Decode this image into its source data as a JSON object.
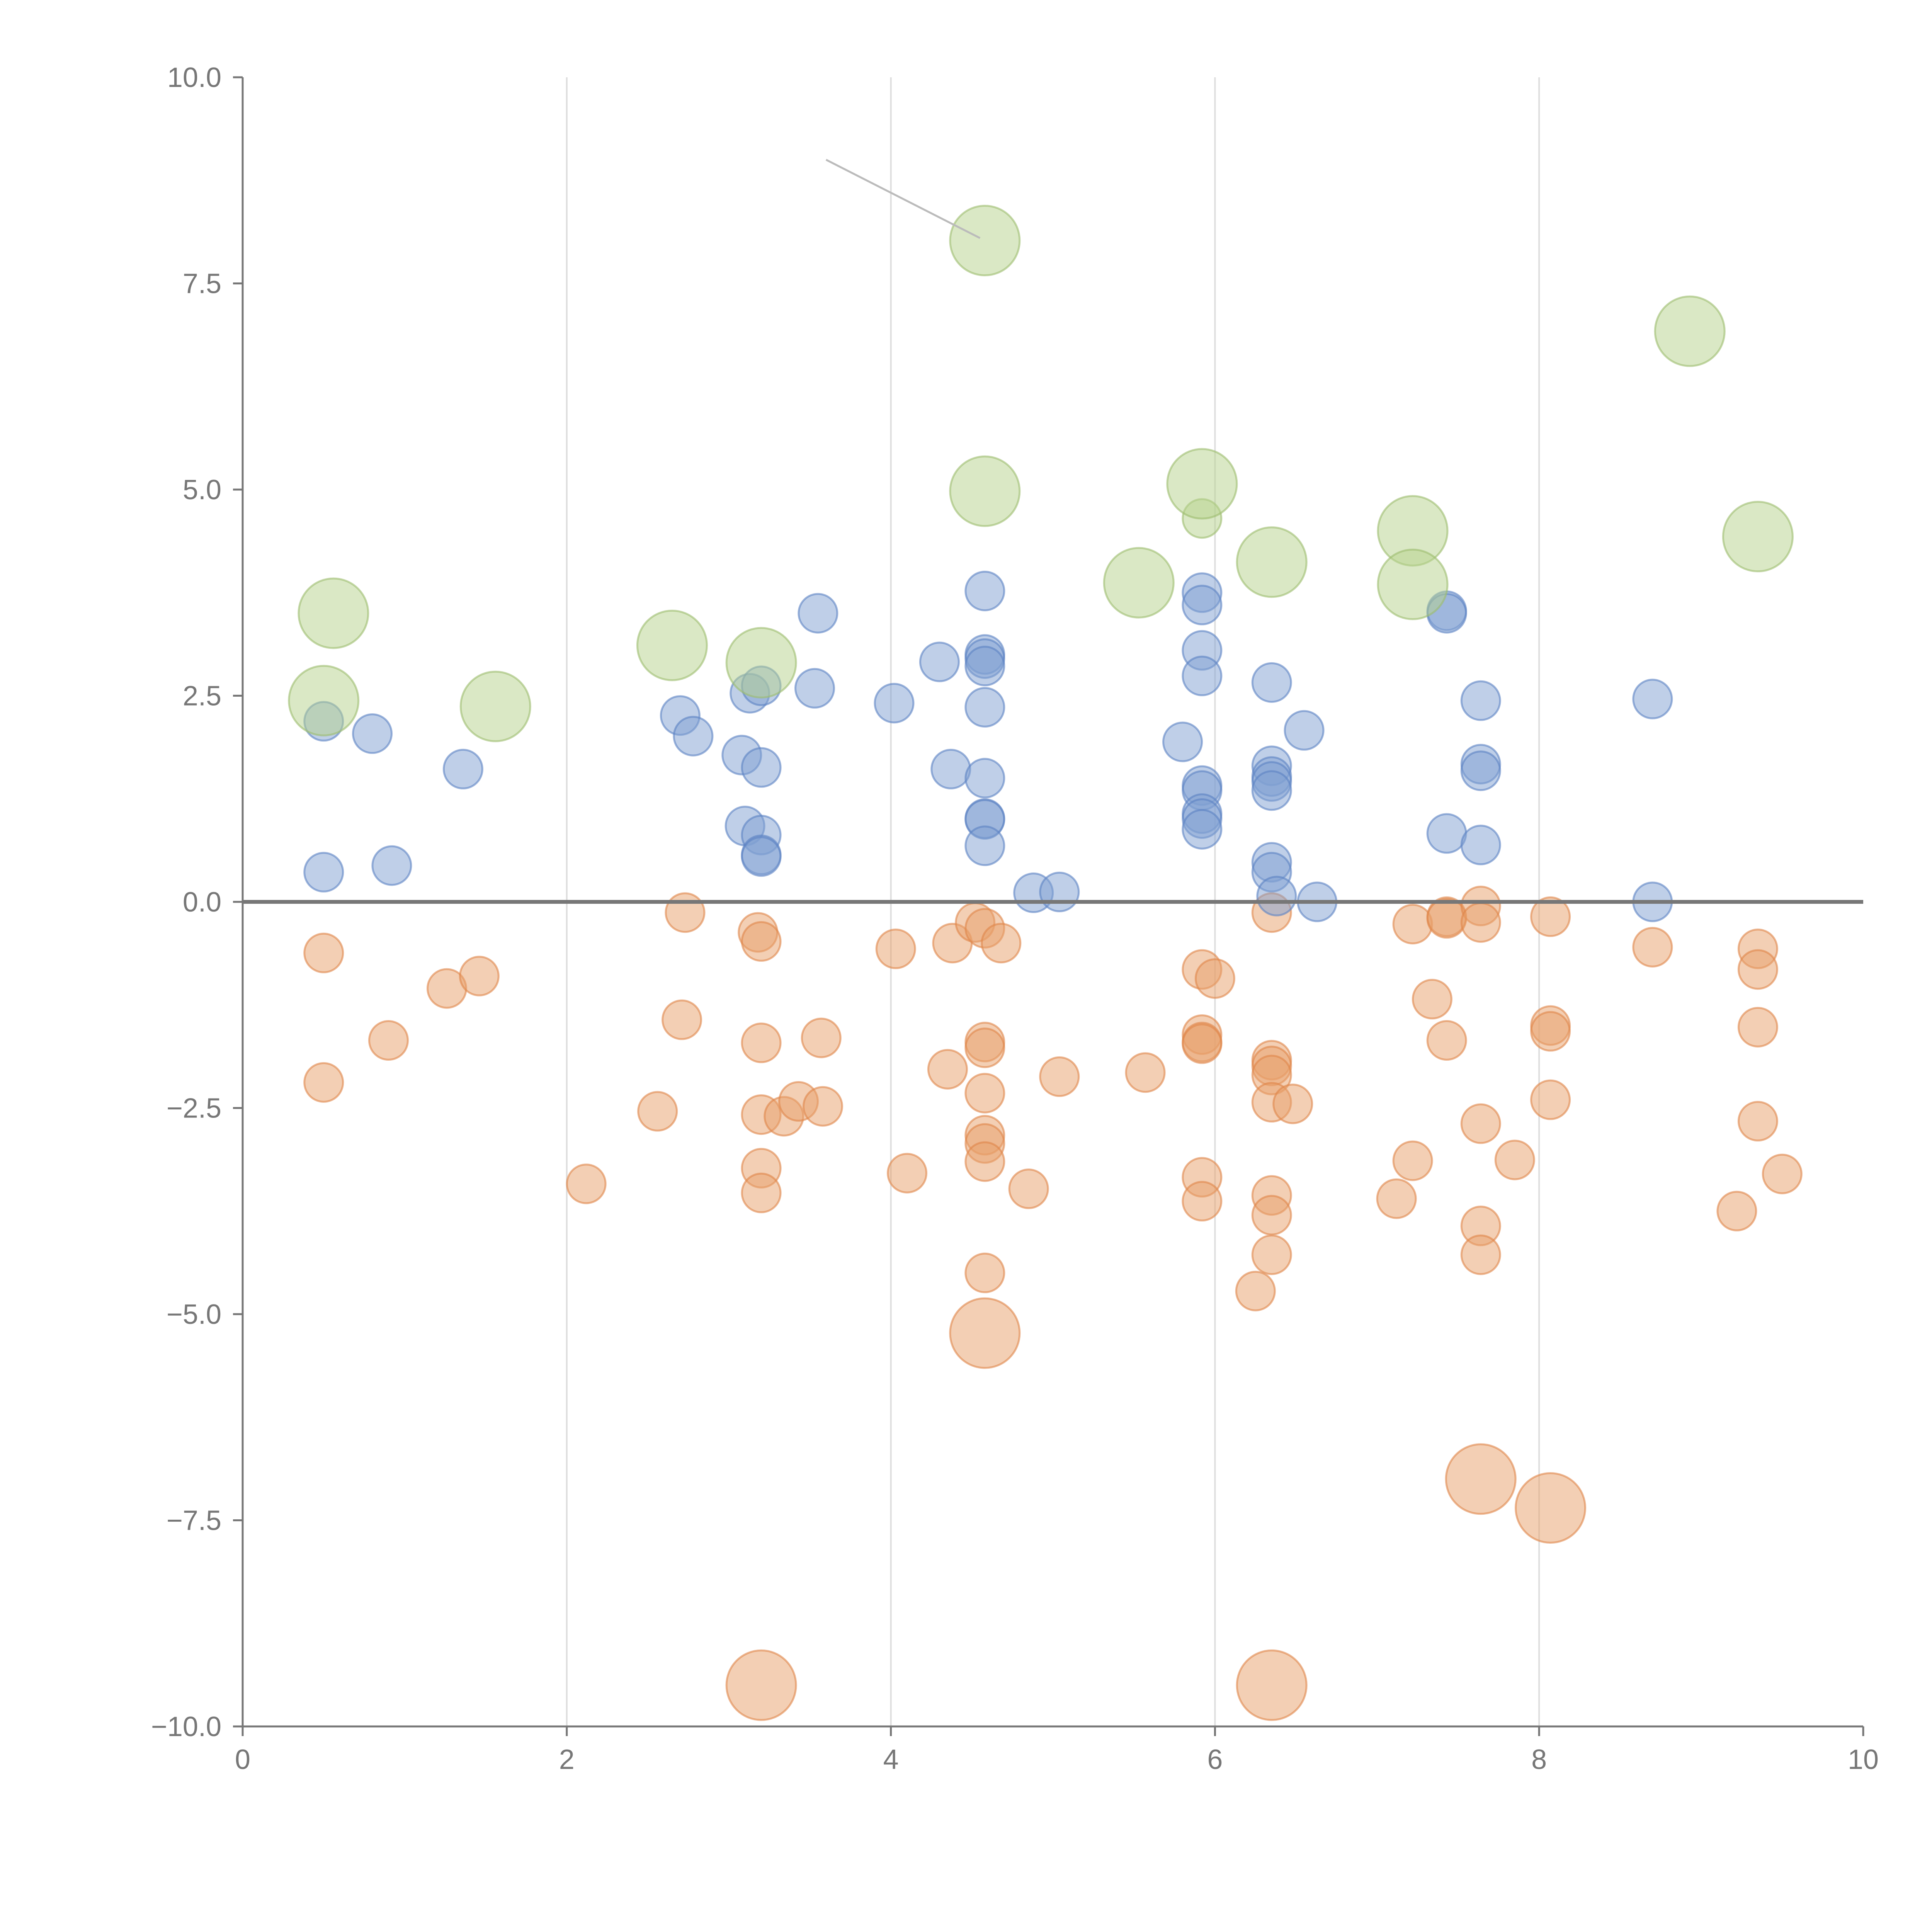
{
  "chart_data": {
    "type": "scatter",
    "title": "",
    "xlabel": "",
    "ylabel": "",
    "xlim": [
      0,
      10
    ],
    "ylim": [
      -10,
      10
    ],
    "grid": "vertical",
    "x_ticks": [
      0,
      2,
      4,
      6,
      8,
      10
    ],
    "y_ticks": [
      -10,
      -7.5,
      -5,
      -2.5,
      0,
      2.5,
      5,
      7.5,
      10
    ],
    "x_tick_labels": [
      "0",
      "2",
      "4",
      "6",
      "8",
      "10"
    ],
    "y_tick_labels": [
      "−10.0",
      "−7.5",
      "−5.0",
      "−2.5",
      "0.0",
      "2.5",
      "5.0",
      "7.5",
      "10.0"
    ],
    "zero_line": 0,
    "annotations": [
      {
        "from": [
          3.6,
          9.0
        ],
        "to": [
          4.55,
          8.05
        ],
        "color": "#bbbbbb"
      }
    ],
    "series": [
      {
        "name": "orange",
        "color": "#e8a06a",
        "stroke": "#e0864a",
        "size": "small",
        "points": [
          [
            0.5,
            -0.62
          ],
          [
            0.5,
            -2.19
          ],
          [
            0.9,
            -1.68
          ],
          [
            1.26,
            -1.05
          ],
          [
            1.46,
            -0.9
          ],
          [
            2.12,
            -3.42
          ],
          [
            2.56,
            -2.54
          ],
          [
            2.71,
            -1.43
          ],
          [
            2.73,
            -0.13
          ],
          [
            3.18,
            -0.37
          ],
          [
            3.2,
            -0.48
          ],
          [
            3.2,
            -1.71
          ],
          [
            3.2,
            -2.58
          ],
          [
            3.2,
            -3.23
          ],
          [
            3.2,
            -3.53
          ],
          [
            3.34,
            -2.6
          ],
          [
            3.43,
            -2.42
          ],
          [
            3.58,
            -2.48
          ],
          [
            3.57,
            -1.65
          ],
          [
            4.03,
            -0.57
          ],
          [
            4.1,
            -3.29
          ],
          [
            4.35,
            -2.03
          ],
          [
            4.38,
            -0.5
          ],
          [
            4.52,
            -0.25
          ],
          [
            4.58,
            -0.32
          ],
          [
            4.58,
            -1.7
          ],
          [
            4.58,
            -1.77
          ],
          [
            4.58,
            -2.32
          ],
          [
            4.58,
            -2.83
          ],
          [
            4.58,
            -2.93
          ],
          [
            4.58,
            -3.15
          ],
          [
            4.58,
            -4.5
          ],
          [
            4.68,
            -0.5
          ],
          [
            4.85,
            -3.48
          ],
          [
            5.04,
            -2.12
          ],
          [
            5.57,
            -2.07
          ],
          [
            5.92,
            -0.82
          ],
          [
            5.92,
            -1.61
          ],
          [
            5.92,
            -1.7
          ],
          [
            5.92,
            -1.72
          ],
          [
            5.92,
            -3.34
          ],
          [
            5.92,
            -3.63
          ],
          [
            6.0,
            -0.93
          ],
          [
            6.25,
            -4.72
          ],
          [
            6.35,
            -0.13
          ],
          [
            6.35,
            -1.92
          ],
          [
            6.35,
            -1.99
          ],
          [
            6.35,
            -2.1
          ],
          [
            6.35,
            -2.43
          ],
          [
            6.35,
            -3.56
          ],
          [
            6.35,
            -3.8
          ],
          [
            6.35,
            -4.28
          ],
          [
            6.48,
            -2.45
          ],
          [
            7.12,
            -3.6
          ],
          [
            7.22,
            -0.27
          ],
          [
            7.22,
            -3.14
          ],
          [
            7.34,
            -1.18
          ],
          [
            7.43,
            -1.68
          ],
          [
            7.43,
            -0.18
          ],
          [
            7.43,
            -0.2
          ],
          [
            7.64,
            -0.05
          ],
          [
            7.64,
            -0.25
          ],
          [
            7.64,
            -2.69
          ],
          [
            7.64,
            -3.93
          ],
          [
            7.64,
            -4.28
          ],
          [
            7.85,
            -3.13
          ],
          [
            8.07,
            -0.18
          ],
          [
            8.07,
            -1.5
          ],
          [
            8.07,
            -1.57
          ],
          [
            8.07,
            -2.4
          ],
          [
            8.7,
            -0.55
          ],
          [
            9.22,
            -3.75
          ],
          [
            9.35,
            -0.57
          ],
          [
            9.35,
            -0.82
          ],
          [
            9.35,
            -1.52
          ],
          [
            9.35,
            -2.66
          ],
          [
            9.5,
            -3.3
          ]
        ]
      },
      {
        "name": "orange-large",
        "color": "#e8a06a",
        "stroke": "#e0864a",
        "size": "large",
        "points": [
          [
            4.58,
            -5.23
          ],
          [
            7.64,
            -7.0
          ],
          [
            8.07,
            -7.35
          ],
          [
            3.2,
            -9.5
          ],
          [
            6.35,
            -9.5
          ]
        ]
      },
      {
        "name": "blue",
        "color": "#7f9fd2",
        "stroke": "#5b82c3",
        "size": "small",
        "points": [
          [
            0.5,
            0.36
          ],
          [
            0.5,
            2.19
          ],
          [
            0.8,
            2.04
          ],
          [
            0.92,
            0.44
          ],
          [
            1.36,
            1.61
          ],
          [
            2.7,
            2.26
          ],
          [
            2.78,
            2.01
          ],
          [
            3.08,
            1.78
          ],
          [
            3.1,
            0.92
          ],
          [
            3.13,
            2.53
          ],
          [
            3.2,
            2.62
          ],
          [
            3.2,
            1.63
          ],
          [
            3.2,
            0.81
          ],
          [
            3.2,
            0.57
          ],
          [
            3.2,
            0.55
          ],
          [
            3.53,
            2.59
          ],
          [
            3.55,
            3.5
          ],
          [
            4.02,
            2.41
          ],
          [
            4.3,
            2.91
          ],
          [
            4.37,
            1.61
          ],
          [
            4.58,
            3.77
          ],
          [
            4.58,
            3.0
          ],
          [
            4.58,
            2.95
          ],
          [
            4.58,
            2.86
          ],
          [
            4.58,
            2.36
          ],
          [
            4.58,
            1.5
          ],
          [
            4.58,
            1.01
          ],
          [
            4.58,
            1.0
          ],
          [
            4.58,
            0.68
          ],
          [
            4.88,
            0.11
          ],
          [
            5.04,
            0.12
          ],
          [
            5.8,
            1.94
          ],
          [
            5.92,
            3.75
          ],
          [
            5.92,
            3.6
          ],
          [
            5.92,
            3.05
          ],
          [
            5.92,
            2.74
          ],
          [
            5.92,
            1.41
          ],
          [
            5.92,
            1.35
          ],
          [
            5.92,
            1.07
          ],
          [
            5.92,
            1.01
          ],
          [
            5.92,
            0.88
          ],
          [
            6.35,
            2.66
          ],
          [
            6.35,
            1.65
          ],
          [
            6.35,
            1.52
          ],
          [
            6.35,
            1.46
          ],
          [
            6.35,
            1.35
          ],
          [
            6.35,
            0.48
          ],
          [
            6.35,
            0.36
          ],
          [
            6.38,
            0.07
          ],
          [
            6.55,
            2.08
          ],
          [
            6.63,
            0.0
          ],
          [
            7.43,
            3.53
          ],
          [
            7.43,
            3.5
          ],
          [
            7.43,
            0.83
          ],
          [
            7.64,
            2.44
          ],
          [
            7.64,
            1.67
          ],
          [
            7.64,
            1.59
          ],
          [
            7.64,
            0.69
          ],
          [
            8.7,
            2.46
          ],
          [
            8.7,
            0.0
          ]
        ]
      },
      {
        "name": "green",
        "color": "#b5d18c",
        "stroke": "#9dbd6e",
        "size": "small",
        "points": [
          [
            5.92,
            4.65
          ]
        ]
      },
      {
        "name": "green-large",
        "color": "#b5d18c",
        "stroke": "#9dbd6e",
        "size": "large",
        "points": [
          [
            0.5,
            2.44
          ],
          [
            0.56,
            3.5
          ],
          [
            1.56,
            2.37
          ],
          [
            2.65,
            3.11
          ],
          [
            3.2,
            2.9
          ],
          [
            4.58,
            8.02
          ],
          [
            4.58,
            4.98
          ],
          [
            5.53,
            3.87
          ],
          [
            5.92,
            5.07
          ],
          [
            6.35,
            4.12
          ],
          [
            7.22,
            4.5
          ],
          [
            7.22,
            3.85
          ],
          [
            8.93,
            6.92
          ],
          [
            9.35,
            4.43
          ]
        ]
      }
    ]
  }
}
